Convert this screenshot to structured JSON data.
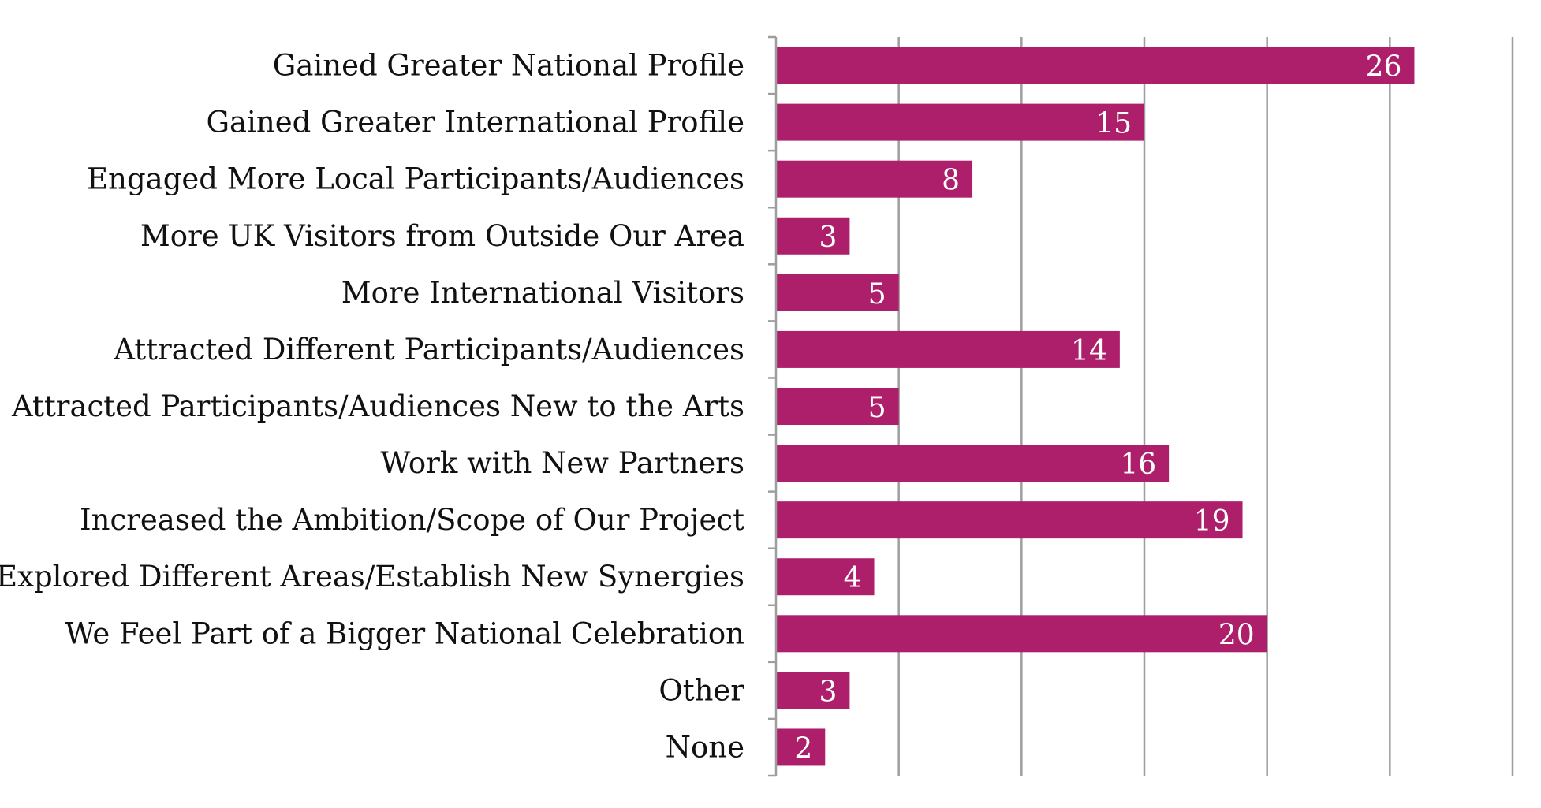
{
  "chart_data": {
    "type": "bar",
    "orientation": "horizontal",
    "categories": [
      "Gained Greater National Profile",
      "Gained Greater International Profile",
      "Engaged More Local Participants/Audiences",
      "More UK Visitors from Outside Our Area",
      "More International Visitors",
      "Attracted Different Participants/Audiences",
      "Attracted Participants/Audiences New to the Arts",
      "Work with New Partners",
      "Increased the Ambition/Scope of Our Project",
      "Explored Different Areas/Establish New Synergies",
      "We Feel Part of a Bigger National Celebration",
      "Other",
      "None"
    ],
    "values": [
      26,
      15,
      8,
      3,
      5,
      14,
      5,
      16,
      19,
      4,
      20,
      3,
      2
    ],
    "xlim": [
      0,
      30
    ],
    "x_grid_step": 5,
    "grid": true,
    "data_labels": true,
    "bar_color": "#ae1f6b",
    "title": "",
    "xlabel": "",
    "ylabel": ""
  }
}
